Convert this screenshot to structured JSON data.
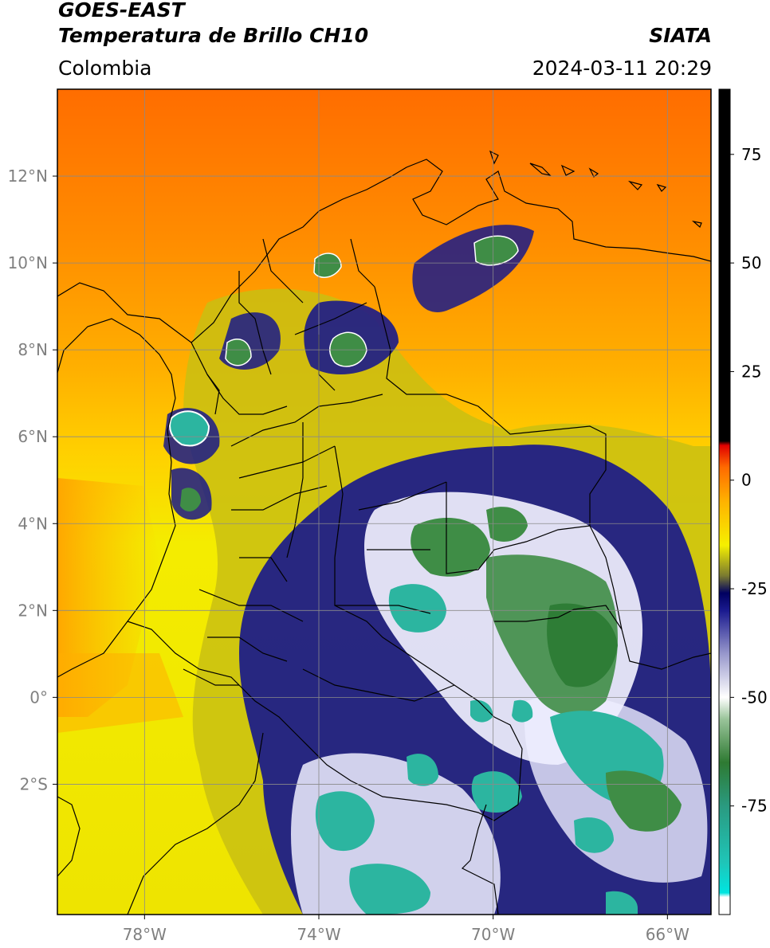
{
  "header": {
    "satellite": "GOES-EAST",
    "product": "Temperatura de Brillo CH10",
    "region": "Colombia",
    "agency": "SIATA",
    "timestamp": "2024-03-11 20:29"
  },
  "map": {
    "lon_range": [
      -80,
      -65
    ],
    "lat_range": [
      -5,
      14
    ],
    "lon_ticks": [
      {
        "value": -78,
        "label": "78°W"
      },
      {
        "value": -74,
        "label": "74°W"
      },
      {
        "value": -70,
        "label": "70°W"
      },
      {
        "value": -66,
        "label": "66°W"
      }
    ],
    "lat_ticks": [
      {
        "value": 12,
        "label": "12°N"
      },
      {
        "value": 10,
        "label": "10°N"
      },
      {
        "value": 8,
        "label": "8°N"
      },
      {
        "value": 6,
        "label": "6°N"
      },
      {
        "value": 4,
        "label": "4°N"
      },
      {
        "value": 2,
        "label": "2°N"
      },
      {
        "value": 0,
        "label": "0°"
      },
      {
        "value": -2,
        "label": "2°S"
      }
    ],
    "gridlines": true,
    "colors": {
      "warm_north": "#ff7a00",
      "orange": "#ffa500",
      "yellow": "#f2ec00",
      "olive": "#8a8a1a",
      "navy": "#151585",
      "white": "#ffffff",
      "green": "#3d8f44",
      "teal": "#2bb3a0",
      "border": "#000000"
    }
  },
  "colorbar": {
    "range": [
      -100,
      90
    ],
    "ticks": [
      {
        "value": 75,
        "label": "75"
      },
      {
        "value": 50,
        "label": "50"
      },
      {
        "value": 25,
        "label": "25"
      },
      {
        "value": 0,
        "label": "0"
      },
      {
        "value": -25,
        "label": "-25"
      },
      {
        "value": -50,
        "label": "-50"
      },
      {
        "value": -75,
        "label": "-75"
      }
    ],
    "stops": [
      {
        "value": -100,
        "color": "#ffffff"
      },
      {
        "value": -96,
        "color": "#ffffff"
      },
      {
        "value": -95,
        "color": "#00e5e0"
      },
      {
        "value": -88,
        "color": "#1fc5b8"
      },
      {
        "value": -75,
        "color": "#2a9a80"
      },
      {
        "value": -65,
        "color": "#2e7a32"
      },
      {
        "value": -55,
        "color": "#9ac49a"
      },
      {
        "value": -50,
        "color": "#ffffff"
      },
      {
        "value": -40,
        "color": "#9898cc"
      },
      {
        "value": -30,
        "color": "#1a1a8f"
      },
      {
        "value": -26,
        "color": "#000060"
      },
      {
        "value": -22,
        "color": "#7a7a30"
      },
      {
        "value": -15,
        "color": "#f5f000"
      },
      {
        "value": -5,
        "color": "#ffb300"
      },
      {
        "value": 3,
        "color": "#ff6a00"
      },
      {
        "value": 8,
        "color": "#e00000"
      },
      {
        "value": 9,
        "color": "#000000"
      },
      {
        "value": 90,
        "color": "#000000"
      }
    ]
  }
}
